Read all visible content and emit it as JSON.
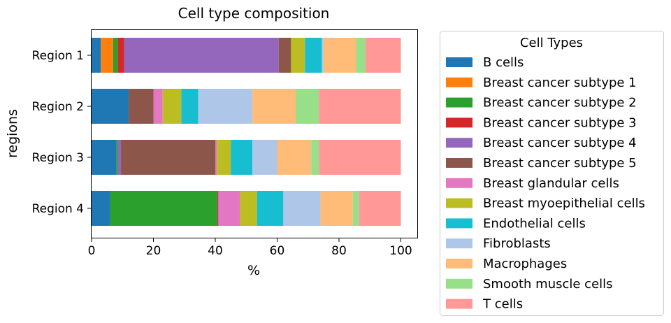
{
  "chart_data": {
    "type": "bar",
    "orientation": "horizontal",
    "stacked": true,
    "title": "Cell type composition",
    "xlabel": "%",
    "ylabel": "regions",
    "xlim": [
      0,
      105
    ],
    "xticks": [
      0,
      20,
      40,
      60,
      80,
      100
    ],
    "grid": false,
    "legend_placement": "outside-right",
    "legend_title": "Cell Types",
    "categories": [
      "Region 1",
      "Region 2",
      "Region 3",
      "Region 4"
    ],
    "series": [
      {
        "name": "B cells",
        "color": "#1f77b4",
        "values": [
          3.0,
          12.0,
          8.0,
          6.0
        ]
      },
      {
        "name": "Breast cancer subtype 1",
        "color": "#ff7f0e",
        "values": [
          4.0,
          0.0,
          0.0,
          0.0
        ]
      },
      {
        "name": "Breast cancer subtype 2",
        "color": "#2ca02c",
        "values": [
          1.5,
          0.0,
          0.5,
          34.5
        ]
      },
      {
        "name": "Breast cancer subtype 3",
        "color": "#d62728",
        "values": [
          2.0,
          0.0,
          0.0,
          0.0
        ]
      },
      {
        "name": "Breast cancer subtype 4",
        "color": "#9467bd",
        "values": [
          50.0,
          0.0,
          1.0,
          0.0
        ]
      },
      {
        "name": "Breast cancer subtype 5",
        "color": "#8c564b",
        "values": [
          4.0,
          8.0,
          30.5,
          0.5
        ]
      },
      {
        "name": "Breast glandular cells",
        "color": "#e377c2",
        "values": [
          0.0,
          3.0,
          0.5,
          7.0
        ]
      },
      {
        "name": "Breast myoepithelial cells",
        "color": "#bcbd22",
        "values": [
          4.5,
          6.0,
          4.5,
          5.5
        ]
      },
      {
        "name": "Endothelial cells",
        "color": "#17becf",
        "values": [
          5.5,
          5.5,
          7.0,
          8.5
        ]
      },
      {
        "name": "Fibroblasts",
        "color": "#aec7e8",
        "values": [
          0.5,
          17.5,
          8.0,
          12.0
        ]
      },
      {
        "name": "Macrophages",
        "color": "#ffbb78",
        "values": [
          10.5,
          14.0,
          11.0,
          10.5
        ]
      },
      {
        "name": "Smooth muscle cells",
        "color": "#98df8a",
        "values": [
          3.0,
          7.5,
          2.5,
          2.0
        ]
      },
      {
        "name": "T cells",
        "color": "#ff9896",
        "values": [
          11.5,
          26.5,
          26.5,
          13.5
        ]
      }
    ]
  }
}
